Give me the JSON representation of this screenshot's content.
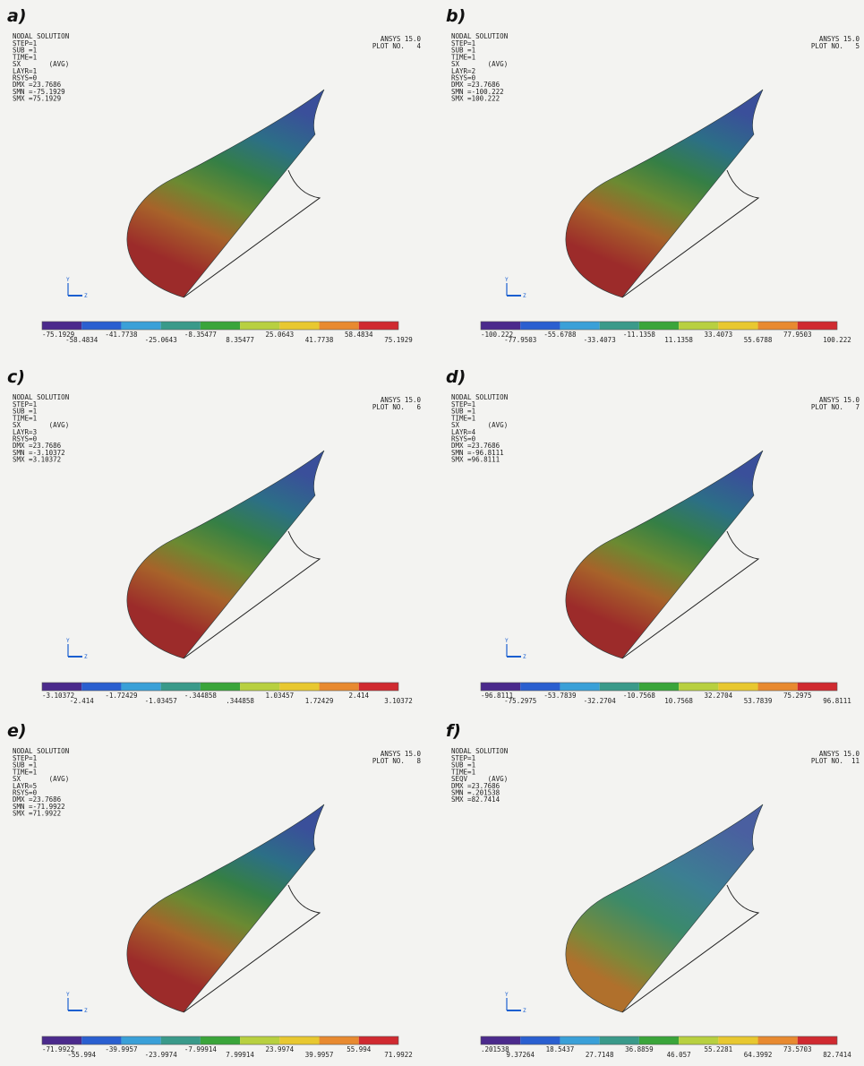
{
  "title_line": "NODAL SOLUTION",
  "ansys": "ANSYS 15.0",
  "triad": [
    "Y",
    "Z"
  ],
  "panels": [
    {
      "label": "a)",
      "plot_no": "PLOT NO.   4",
      "header": [
        "STEP=1",
        "SUB =1",
        "TIME=1",
        "SX       (AVG)",
        "LAYR=1",
        "RSYS=0",
        "DMX =23.7686",
        "SMN =-75.1929",
        "SMX =75.1929"
      ],
      "legend": [
        "-75.1929",
        "-58.4834",
        "-41.7738",
        "-25.0643",
        "-8.35477",
        "8.35477",
        "25.0643",
        "41.7738",
        "58.4834",
        "75.1929"
      ]
    },
    {
      "label": "b)",
      "plot_no": "PLOT NO.   5",
      "header": [
        "STEP=1",
        "SUB =1",
        "TIME=1",
        "SX       (AVG)",
        "LAYR=2",
        "RSYS=0",
        "DMX =23.7686",
        "SMN =-100.222",
        "SMX =100.222"
      ],
      "legend": [
        "-100.222",
        "-77.9503",
        "-55.6788",
        "-33.4073",
        "-11.1358",
        "11.1358",
        "33.4073",
        "55.6788",
        "77.9503",
        "100.222"
      ]
    },
    {
      "label": "c)",
      "plot_no": "PLOT NO.   6",
      "header": [
        "STEP=1",
        "SUB =1",
        "TIME=1",
        "SX       (AVG)",
        "LAYR=3",
        "RSYS=0",
        "DMX =23.7686",
        "SMN =-3.10372",
        "SMX =3.10372"
      ],
      "legend": [
        "-3.10372",
        "-2.414",
        "-1.72429",
        "-1.03457",
        "-.344858",
        ".344858",
        "1.03457",
        "1.72429",
        "2.414",
        "3.10372"
      ]
    },
    {
      "label": "d)",
      "plot_no": "PLOT NO.   7",
      "header": [
        "STEP=1",
        "SUB =1",
        "TIME=1",
        "SX       (AVG)",
        "LAYR=4",
        "RSYS=0",
        "DMX =23.7686",
        "SMN =-96.8111",
        "SMX =96.8111"
      ],
      "legend": [
        "-96.8111",
        "-75.2975",
        "-53.7839",
        "-32.2704",
        "-10.7568",
        "10.7568",
        "32.2704",
        "53.7839",
        "75.2975",
        "96.8111"
      ]
    },
    {
      "label": "e)",
      "plot_no": "PLOT NO.   8",
      "header": [
        "STEP=1",
        "SUB =1",
        "TIME=1",
        "SX       (AVG)",
        "LAYR=5",
        "RSYS=0",
        "DMX =23.7686",
        "SMN =-71.9922",
        "SMX =71.9922"
      ],
      "legend": [
        "-71.9922",
        "-55.994",
        "-39.9957",
        "-23.9974",
        "-7.99914",
        "7.99914",
        "23.9974",
        "39.9957",
        "55.994",
        "71.9922"
      ]
    },
    {
      "label": "f)",
      "plot_no": "PLOT NO.  11",
      "header": [
        "STEP=1",
        "SUB =1",
        "TIME=1",
        "SEQV     (AVG)",
        "DMX =23.7686",
        "SMN =.201538",
        "SMX =82.7414"
      ],
      "legend": [
        ".201538",
        "9.37264",
        "18.5437",
        "27.7148",
        "36.8859",
        "46.057",
        "55.2281",
        "64.3992",
        "73.5703",
        "82.7414"
      ]
    }
  ]
}
